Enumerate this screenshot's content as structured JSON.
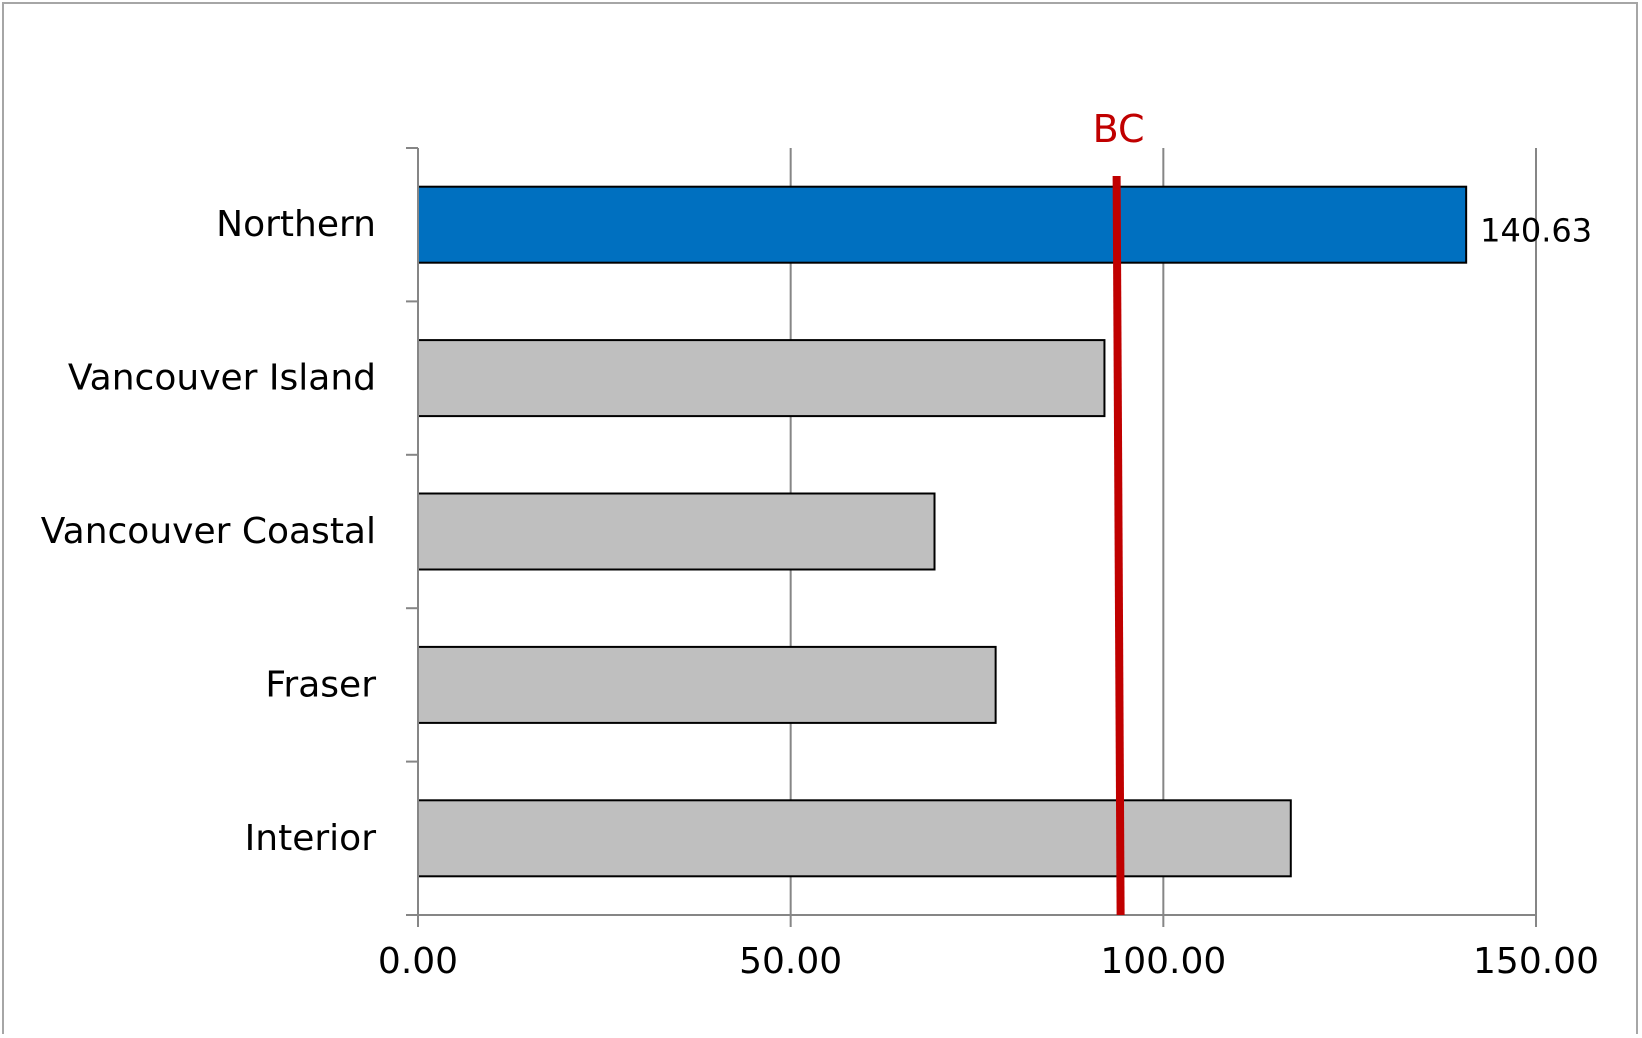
{
  "chart_data": {
    "type": "bar",
    "orientation": "horizontal",
    "categories": [
      "Northern",
      "Vancouver Island",
      "Vancouver Coastal",
      "Fraser",
      "Interior"
    ],
    "values": [
      140.63,
      92.1,
      69.3,
      77.5,
      117.1
    ],
    "colors": [
      "#0070c0",
      "#bfbfbf",
      "#bfbfbf",
      "#bfbfbf",
      "#bfbfbf"
    ],
    "data_labels": [
      {
        "category": "Northern",
        "text": "140.63"
      }
    ],
    "reference_line": {
      "label": "BC",
      "value": 94.0,
      "color": "#c00000"
    },
    "xlim": [
      0,
      150
    ],
    "xticks": [
      "0.00",
      "50.00",
      "100.00",
      "150.00"
    ],
    "xtick_values": [
      0,
      50,
      100,
      150
    ],
    "title": "",
    "xlabel": "",
    "ylabel": "",
    "grid": "vertical",
    "legend": "none"
  }
}
